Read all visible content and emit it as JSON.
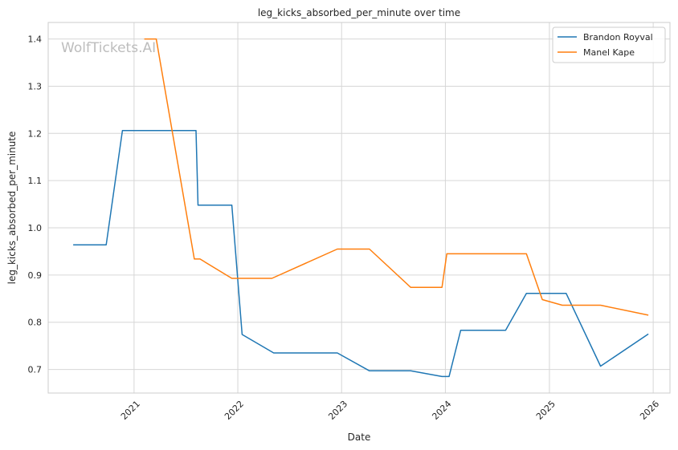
{
  "chart_data": {
    "type": "line",
    "title": "leg_kicks_absorbed_per_minute over time",
    "xlabel": "Date",
    "ylabel": "leg_kicks_absorbed_per_minute",
    "watermark": "WolfTickets.AI",
    "x_ticks": [
      "2021",
      "2022",
      "2023",
      "2024",
      "2025",
      "2026"
    ],
    "y_ticks": [
      "0.7",
      "0.8",
      "0.9",
      "1.0",
      "1.1",
      "1.2",
      "1.3",
      "1.4"
    ],
    "xlim": [
      "2020-03-05",
      "2026-03-01"
    ],
    "ylim": [
      0.65,
      1.435
    ],
    "grid": true,
    "legend_position": "top-right",
    "series": [
      {
        "name": "Brandon Royval",
        "color": "#1f77b4",
        "points": [
          [
            "2020-06-01",
            0.964
          ],
          [
            "2020-09-25",
            0.964
          ],
          [
            "2020-11-21",
            1.206
          ],
          [
            "2021-08-07",
            1.206
          ],
          [
            "2021-08-14",
            1.048
          ],
          [
            "2021-12-11",
            1.048
          ],
          [
            "2022-01-16",
            0.774
          ],
          [
            "2022-05-07",
            0.735
          ],
          [
            "2022-12-17",
            0.735
          ],
          [
            "2023-04-09",
            0.697
          ],
          [
            "2023-09-01",
            0.697
          ],
          [
            "2023-12-20",
            0.685
          ],
          [
            "2024-01-14",
            0.685
          ],
          [
            "2024-02-24",
            0.783
          ],
          [
            "2024-07-31",
            0.783
          ],
          [
            "2024-10-12",
            0.861
          ],
          [
            "2025-03-01",
            0.861
          ],
          [
            "2025-06-30",
            0.707
          ],
          [
            "2025-12-15",
            0.775
          ]
        ]
      },
      {
        "name": "Manel Kape",
        "color": "#ff7f0e",
        "points": [
          [
            "2021-02-06",
            1.4
          ],
          [
            "2021-03-20",
            1.4
          ],
          [
            "2021-08-01",
            0.934
          ],
          [
            "2021-08-21",
            0.934
          ],
          [
            "2021-12-11",
            0.893
          ],
          [
            "2022-05-01",
            0.893
          ],
          [
            "2022-12-17",
            0.955
          ],
          [
            "2023-04-09",
            0.955
          ],
          [
            "2023-09-01",
            0.874
          ],
          [
            "2023-12-20",
            0.874
          ],
          [
            "2024-01-06",
            0.945
          ],
          [
            "2024-10-12",
            0.945
          ],
          [
            "2024-12-07",
            0.848
          ],
          [
            "2025-02-15",
            0.836
          ],
          [
            "2025-06-30",
            0.836
          ],
          [
            "2025-12-15",
            0.815
          ]
        ]
      }
    ]
  }
}
